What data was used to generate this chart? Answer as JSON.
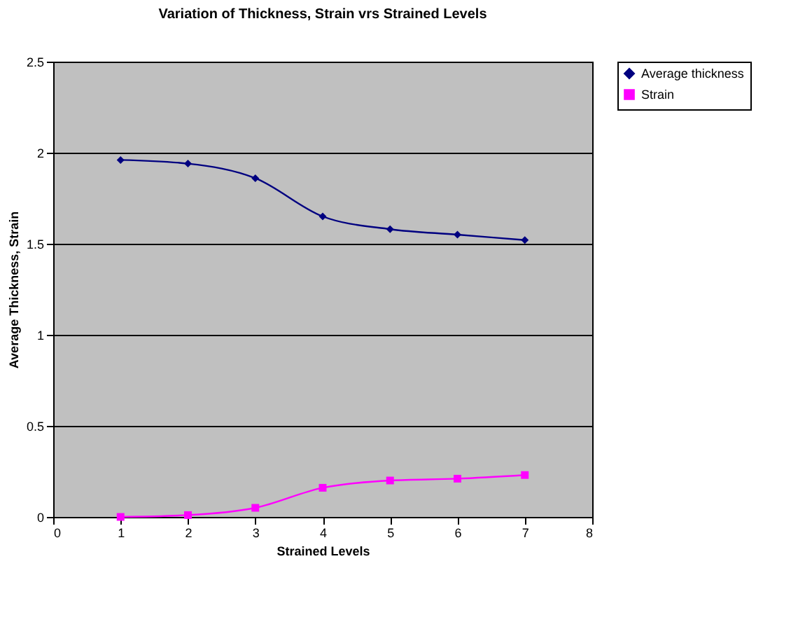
{
  "chart_data": {
    "type": "line",
    "title": "Variation of Thickness, Strain vrs Strained Levels",
    "xlabel": "Strained Levels",
    "ylabel": "Average Thickness, Strain",
    "x": [
      1,
      2,
      3,
      4,
      5,
      6,
      7
    ],
    "xlim": [
      0,
      8
    ],
    "xticks": [
      0,
      1,
      2,
      3,
      4,
      5,
      6,
      7,
      8
    ],
    "ylim": [
      0,
      2.5
    ],
    "yticks": [
      0,
      0.5,
      1,
      1.5,
      2,
      2.5
    ],
    "grid": "y",
    "legend": "right",
    "series": [
      {
        "name": "Average thickness",
        "color": "#000080",
        "marker": "diamond",
        "values": [
          1.96,
          1.94,
          1.86,
          1.65,
          1.58,
          1.55,
          1.52
        ]
      },
      {
        "name": "Strain",
        "color": "#ff00ff",
        "marker": "square",
        "values": [
          0,
          0.01,
          0.05,
          0.16,
          0.2,
          0.21,
          0.23
        ]
      }
    ]
  }
}
